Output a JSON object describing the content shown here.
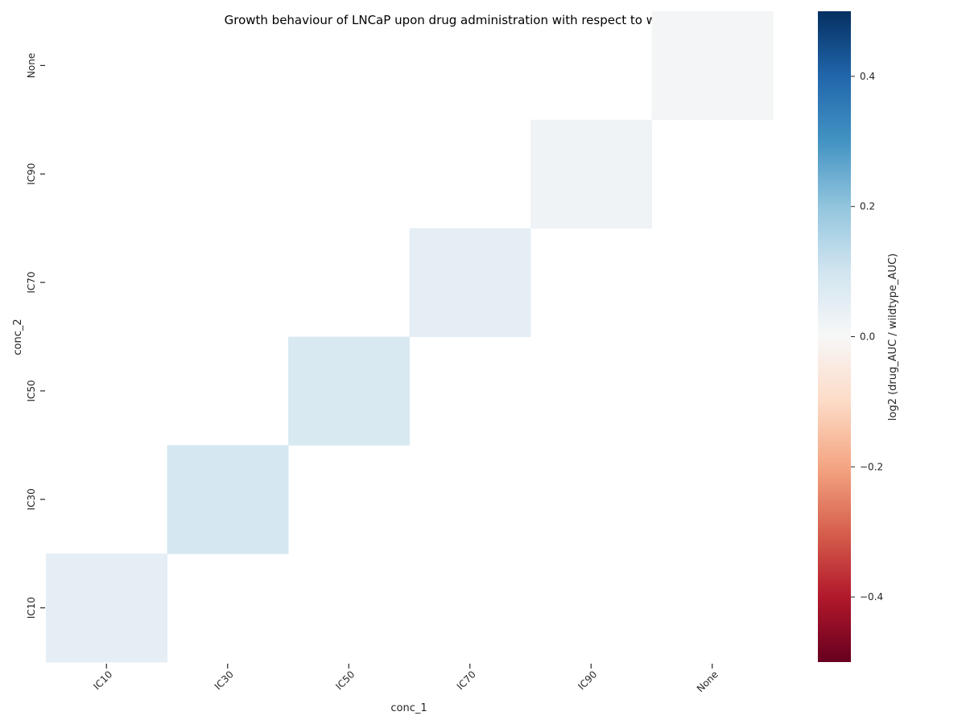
{
  "chart_data": {
    "type": "heatmap",
    "title": "Growth behaviour of LNCaP upon drug administration with respect to wildtype LNCaP",
    "xlabel": "conc_1",
    "ylabel": "conc_2",
    "x_categories": [
      "IC10",
      "IC30",
      "IC50",
      "IC70",
      "IC90",
      "None"
    ],
    "y_categories": [
      "None",
      "IC90",
      "IC70",
      "IC50",
      "IC30",
      "IC10"
    ],
    "cells": [
      {
        "x": "IC10",
        "y": "IC10",
        "value": 0.05
      },
      {
        "x": "IC30",
        "y": "IC30",
        "value": 0.09
      },
      {
        "x": "IC50",
        "y": "IC50",
        "value": 0.08
      },
      {
        "x": "IC70",
        "y": "IC70",
        "value": 0.05
      },
      {
        "x": "IC90",
        "y": "IC90",
        "value": 0.02
      },
      {
        "x": "None",
        "y": "None",
        "value": 0.01
      }
    ],
    "missing_cells": "blank",
    "colorbar": {
      "label": "log2 (drug_AUC / wildtype_AUC)",
      "vmin": -0.5,
      "vmax": 0.5,
      "ticks": [
        0.4,
        0.2,
        0.0,
        -0.2,
        -0.4
      ],
      "tick_labels": [
        "0.4",
        "0.2",
        "0.0",
        "−0.2",
        "−0.4"
      ],
      "colormap": "RdBu",
      "colors": [
        "#67001f",
        "#b2182b",
        "#d6604d",
        "#f4a582",
        "#fddbc7",
        "#f7f7f7",
        "#d1e5f0",
        "#92c5de",
        "#4393c3",
        "#2166ac",
        "#053061"
      ]
    }
  }
}
